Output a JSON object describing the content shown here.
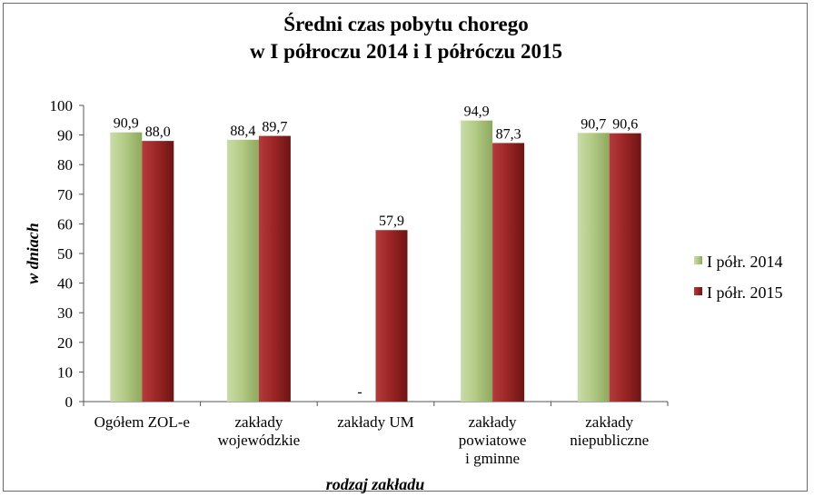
{
  "chart_data": {
    "type": "bar",
    "title_lines": [
      "Średni czas pobytu chorego",
      "w I półroczu 2014 i  I półróczu 2015"
    ],
    "ylabel": "w dniach",
    "xlabel": "rodzaj zakładu",
    "ylim": [
      0,
      100
    ],
    "yticks": [
      0,
      10,
      20,
      30,
      40,
      50,
      60,
      70,
      80,
      90,
      100
    ],
    "categories": [
      [
        "Ogółem ZOL-e"
      ],
      [
        "zakłady",
        "wojewódzkie"
      ],
      [
        "zakłady UM"
      ],
      [
        "zakłady",
        "powiatowe",
        "i gminne"
      ],
      [
        "zakłady",
        "niepubliczne"
      ]
    ],
    "series": [
      {
        "name": "I półr. 2014",
        "color": "#a9c27a",
        "values": [
          90.9,
          88.4,
          null,
          94.9,
          90.7
        ],
        "labels": [
          "90,9",
          "88,4",
          "-",
          "94,9",
          "90,7"
        ]
      },
      {
        "name": "I półr. 2015",
        "color": "#8e1f1f",
        "values": [
          88.0,
          89.7,
          57.9,
          87.3,
          90.6
        ],
        "labels": [
          "88,0",
          "89,7",
          "57,9",
          "87,3",
          "90,6"
        ]
      }
    ],
    "grid": false,
    "legend_position": "right"
  }
}
